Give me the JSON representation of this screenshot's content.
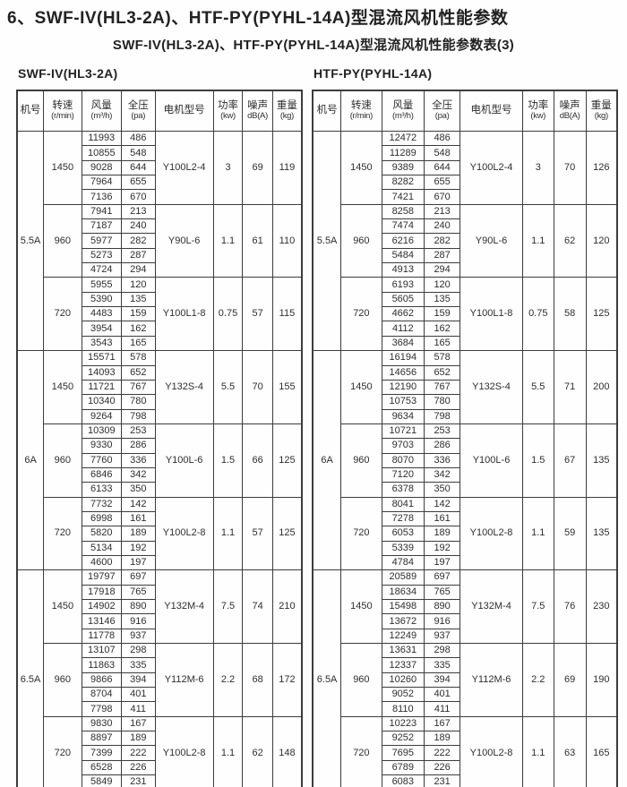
{
  "page": {
    "title": "6、SWF-IV(HL3-2A)、HTF-PY(PYHL-14A)型混流风机性能参数",
    "subtitle": "SWF-IV(HL3-2A)、HTF-PY(PYHL-14A)型混流风机性能参数表(3)"
  },
  "columns": [
    {
      "label": "机号",
      "sub": ""
    },
    {
      "label": "转速",
      "sub": "(r/min)"
    },
    {
      "label": "风量",
      "sub": "(m³/h)"
    },
    {
      "label": "全压",
      "sub": "(pa)"
    },
    {
      "label": "电机型号",
      "sub": ""
    },
    {
      "label": "功率",
      "sub": "(kw)"
    },
    {
      "label": "噪声",
      "sub": "dB(A)"
    },
    {
      "label": "重量",
      "sub": "(kg)"
    }
  ],
  "tables": [
    {
      "model": "SWF-IV(HL3-2A)",
      "sizes": [
        {
          "size": "5.5A",
          "groups": [
            {
              "rpm": "1450",
              "rows": [
                [
                  "11993",
                  "486"
                ],
                [
                  "10855",
                  "548"
                ],
                [
                  "9028",
                  "644"
                ],
                [
                  "7964",
                  "655"
                ],
                [
                  "7136",
                  "670"
                ]
              ],
              "motor": "Y100L2-4",
              "power": "3",
              "noise": "69",
              "weight": "119"
            },
            {
              "rpm": "960",
              "rows": [
                [
                  "7941",
                  "213"
                ],
                [
                  "7187",
                  "240"
                ],
                [
                  "5977",
                  "282"
                ],
                [
                  "5273",
                  "287"
                ],
                [
                  "4724",
                  "294"
                ]
              ],
              "motor": "Y90L-6",
              "power": "1.1",
              "noise": "61",
              "weight": "110"
            },
            {
              "rpm": "720",
              "rows": [
                [
                  "5955",
                  "120"
                ],
                [
                  "5390",
                  "135"
                ],
                [
                  "4483",
                  "159"
                ],
                [
                  "3954",
                  "162"
                ],
                [
                  "3543",
                  "165"
                ]
              ],
              "motor": "Y100L1-8",
              "power": "0.75",
              "noise": "57",
              "weight": "115"
            }
          ]
        },
        {
          "size": "6A",
          "groups": [
            {
              "rpm": "1450",
              "rows": [
                [
                  "15571",
                  "578"
                ],
                [
                  "14093",
                  "652"
                ],
                [
                  "11721",
                  "767"
                ],
                [
                  "10340",
                  "780"
                ],
                [
                  "9264",
                  "798"
                ]
              ],
              "motor": "Y132S-4",
              "power": "5.5",
              "noise": "70",
              "weight": "155"
            },
            {
              "rpm": "960",
              "rows": [
                [
                  "10309",
                  "253"
                ],
                [
                  "9330",
                  "286"
                ],
                [
                  "7760",
                  "336"
                ],
                [
                  "6846",
                  "342"
                ],
                [
                  "6133",
                  "350"
                ]
              ],
              "motor": "Y100L-6",
              "power": "1.5",
              "noise": "66",
              "weight": "125"
            },
            {
              "rpm": "720",
              "rows": [
                [
                  "7732",
                  "142"
                ],
                [
                  "6998",
                  "161"
                ],
                [
                  "5820",
                  "189"
                ],
                [
                  "5134",
                  "192"
                ],
                [
                  "4600",
                  "197"
                ]
              ],
              "motor": "Y100L2-8",
              "power": "1.1",
              "noise": "57",
              "weight": "125"
            }
          ]
        },
        {
          "size": "6.5A",
          "groups": [
            {
              "rpm": "1450",
              "rows": [
                [
                  "19797",
                  "697"
                ],
                [
                  "17918",
                  "765"
                ],
                [
                  "14902",
                  "890"
                ],
                [
                  "13146",
                  "916"
                ],
                [
                  "11778",
                  "937"
                ]
              ],
              "motor": "Y132M-4",
              "power": "7.5",
              "noise": "74",
              "weight": "210"
            },
            {
              "rpm": "960",
              "rows": [
                [
                  "13107",
                  "298"
                ],
                [
                  "11863",
                  "335"
                ],
                [
                  "9866",
                  "394"
                ],
                [
                  "8704",
                  "401"
                ],
                [
                  "7798",
                  "411"
                ]
              ],
              "motor": "Y112M-6",
              "power": "2.2",
              "noise": "68",
              "weight": "172"
            },
            {
              "rpm": "720",
              "rows": [
                [
                  "9830",
                  "167"
                ],
                [
                  "8897",
                  "189"
                ],
                [
                  "7399",
                  "222"
                ],
                [
                  "6528",
                  "226"
                ],
                [
                  "5849",
                  "231"
                ]
              ],
              "motor": "Y100L2-8",
              "power": "1.1",
              "noise": "62",
              "weight": "148"
            }
          ]
        }
      ]
    },
    {
      "model": "HTF-PY(PYHL-14A)",
      "sizes": [
        {
          "size": "5.5A",
          "groups": [
            {
              "rpm": "1450",
              "rows": [
                [
                  "12472",
                  "486"
                ],
                [
                  "11289",
                  "548"
                ],
                [
                  "9389",
                  "644"
                ],
                [
                  "8282",
                  "655"
                ],
                [
                  "7421",
                  "670"
                ]
              ],
              "motor": "Y100L2-4",
              "power": "3",
              "noise": "70",
              "weight": "126"
            },
            {
              "rpm": "960",
              "rows": [
                [
                  "8258",
                  "213"
                ],
                [
                  "7474",
                  "240"
                ],
                [
                  "6216",
                  "282"
                ],
                [
                  "5484",
                  "287"
                ],
                [
                  "4913",
                  "294"
                ]
              ],
              "motor": "Y90L-6",
              "power": "1.1",
              "noise": "62",
              "weight": "120"
            },
            {
              "rpm": "720",
              "rows": [
                [
                  "6193",
                  "120"
                ],
                [
                  "5605",
                  "135"
                ],
                [
                  "4662",
                  "159"
                ],
                [
                  "4112",
                  "162"
                ],
                [
                  "3684",
                  "165"
                ]
              ],
              "motor": "Y100L1-8",
              "power": "0.75",
              "noise": "58",
              "weight": "125"
            }
          ]
        },
        {
          "size": "6A",
          "groups": [
            {
              "rpm": "1450",
              "rows": [
                [
                  "16194",
                  "578"
                ],
                [
                  "14656",
                  "652"
                ],
                [
                  "12190",
                  "767"
                ],
                [
                  "10753",
                  "780"
                ],
                [
                  "9634",
                  "798"
                ]
              ],
              "motor": "Y132S-4",
              "power": "5.5",
              "noise": "71",
              "weight": "200"
            },
            {
              "rpm": "960",
              "rows": [
                [
                  "10721",
                  "253"
                ],
                [
                  "9703",
                  "286"
                ],
                [
                  "8070",
                  "336"
                ],
                [
                  "7120",
                  "342"
                ],
                [
                  "6378",
                  "350"
                ]
              ],
              "motor": "Y100L-6",
              "power": "1.5",
              "noise": "67",
              "weight": "135"
            },
            {
              "rpm": "720",
              "rows": [
                [
                  "8041",
                  "142"
                ],
                [
                  "7278",
                  "161"
                ],
                [
                  "6053",
                  "189"
                ],
                [
                  "5339",
                  "192"
                ],
                [
                  "4784",
                  "197"
                ]
              ],
              "motor": "Y100L2-8",
              "power": "1.1",
              "noise": "59",
              "weight": "135"
            }
          ]
        },
        {
          "size": "6.5A",
          "groups": [
            {
              "rpm": "1450",
              "rows": [
                [
                  "20589",
                  "697"
                ],
                [
                  "18634",
                  "765"
                ],
                [
                  "15498",
                  "890"
                ],
                [
                  "13672",
                  "916"
                ],
                [
                  "12249",
                  "937"
                ]
              ],
              "motor": "Y132M-4",
              "power": "7.5",
              "noise": "76",
              "weight": "230"
            },
            {
              "rpm": "960",
              "rows": [
                [
                  "13631",
                  "298"
                ],
                [
                  "12337",
                  "335"
                ],
                [
                  "10260",
                  "394"
                ],
                [
                  "9052",
                  "401"
                ],
                [
                  "8110",
                  "411"
                ]
              ],
              "motor": "Y112M-6",
              "power": "2.2",
              "noise": "69",
              "weight": "190"
            },
            {
              "rpm": "720",
              "rows": [
                [
                  "10223",
                  "167"
                ],
                [
                  "9252",
                  "189"
                ],
                [
                  "7695",
                  "222"
                ],
                [
                  "6789",
                  "226"
                ],
                [
                  "6083",
                  "231"
                ]
              ],
              "motor": "Y100L2-8",
              "power": "1.1",
              "noise": "63",
              "weight": "165"
            }
          ]
        }
      ]
    }
  ]
}
